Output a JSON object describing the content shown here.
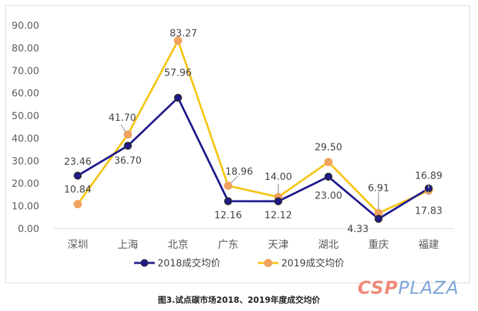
{
  "chart_data": {
    "type": "line",
    "title": "",
    "xlabel": "",
    "ylabel": "",
    "categories": [
      "深圳",
      "上海",
      "北京",
      "广东",
      "天津",
      "湖北",
      "重庆",
      "福建"
    ],
    "ylim": [
      0,
      90
    ],
    "yticks": [
      "0.00",
      "10.00",
      "20.00",
      "30.00",
      "40.00",
      "50.00",
      "60.00",
      "70.00",
      "80.00",
      "90.00"
    ],
    "grid": false,
    "legend_position": "bottom",
    "series": [
      {
        "name": "2018成交均价",
        "color": "#1f1a8c",
        "marker_color": "#1f1a8c",
        "values": [
          23.46,
          36.7,
          57.96,
          12.16,
          12.12,
          23.0,
          4.33,
          17.83
        ],
        "labels": [
          "23.46",
          "36.70",
          "57.96",
          "12.16",
          "12.12",
          "23.00",
          "4.33",
          "17.83"
        ]
      },
      {
        "name": "2019成交均价",
        "color": "#f5c518",
        "marker_color": "#f0a25e",
        "values": [
          10.84,
          41.7,
          83.27,
          18.96,
          14.0,
          29.5,
          6.91,
          16.89
        ],
        "labels": [
          "10.84",
          "41.70",
          "83.27",
          "18.96",
          "14.00",
          "29.50",
          "6.91",
          "16.89"
        ]
      }
    ]
  },
  "caption": "图3.试点碳市场2018、2019年度成交均价",
  "watermark": {
    "part1": "CSP",
    "part2": "PLAZA"
  }
}
